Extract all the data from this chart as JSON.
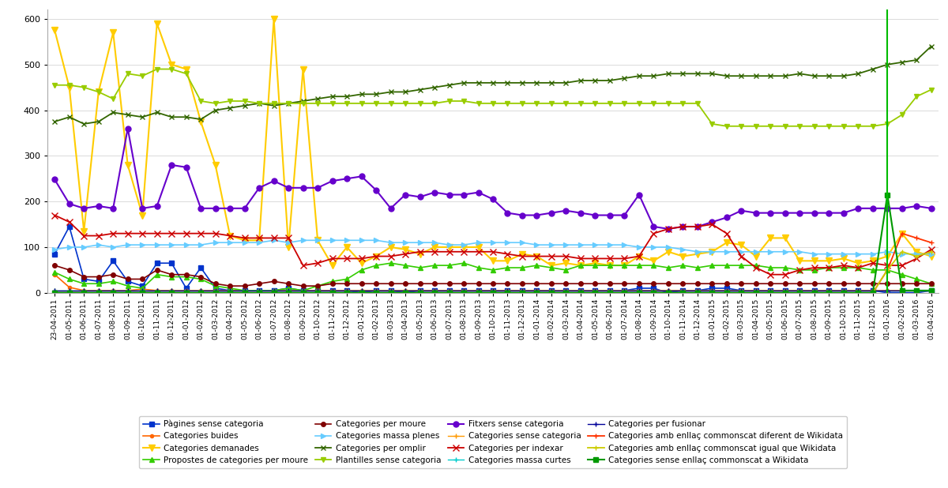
{
  "ylim": [
    0,
    620
  ],
  "yticks": [
    0,
    100,
    200,
    300,
    400,
    500,
    600
  ],
  "bg_color": "#FFFFFF",
  "grid_color": "#CCCCCC",
  "legend_fontsize": 7.5,
  "vertical_line_index": 57,
  "x_labels": [
    "23-04-2011",
    "01-05-2011",
    "01-06-2011",
    "01-07-2011",
    "01-08-2011",
    "01-09-2011",
    "01-10-2011",
    "01-11-2011",
    "01-12-2011",
    "01-01-2012",
    "01-02-2012",
    "01-03-2012",
    "01-04-2012",
    "01-05-2012",
    "01-06-2012",
    "01-07-2012",
    "01-08-2012",
    "01-09-2012",
    "01-10-2012",
    "01-11-2012",
    "01-12-2012",
    "01-01-2013",
    "01-02-2013",
    "01-03-2013",
    "01-04-2013",
    "01-05-2013",
    "01-06-2013",
    "01-07-2013",
    "01-08-2013",
    "01-09-2013",
    "01-10-2013",
    "01-11-2013",
    "01-12-2013",
    "01-01-2014",
    "01-02-2014",
    "01-03-2014",
    "01-04-2014",
    "01-05-2014",
    "01-06-2014",
    "01-07-2014",
    "01-08-2014",
    "01-09-2014",
    "01-10-2014",
    "01-11-2014",
    "01-12-2014",
    "01-01-2015",
    "01-02-2015",
    "01-03-2015",
    "01-04-2015",
    "01-05-2015",
    "01-06-2015",
    "01-07-2015",
    "01-08-2015",
    "01-09-2015",
    "01-10-2015",
    "01-11-2015",
    "01-12-2015",
    "01-01-2016",
    "01-02-2016",
    "01-03-2016",
    "01-04-2016"
  ],
  "series": {
    "Pàgines sense categoria": {
      "color": "#0033CC",
      "marker": "s",
      "markersize": 4,
      "linewidth": 1.2,
      "values": [
        85,
        145,
        30,
        25,
        70,
        25,
        15,
        65,
        65,
        10,
        55,
        10,
        5,
        5,
        5,
        5,
        10,
        5,
        5,
        5,
        5,
        0,
        5,
        5,
        0,
        5,
        5,
        5,
        5,
        5,
        5,
        5,
        5,
        5,
        5,
        5,
        5,
        5,
        5,
        5,
        10,
        10,
        0,
        5,
        5,
        10,
        10,
        5,
        5,
        5,
        5,
        5,
        5,
        5,
        5,
        5,
        5,
        0,
        0,
        0,
        5
      ]
    },
    "Categories buides": {
      "color": "#FF6600",
      "marker": "o",
      "markersize": 3,
      "linewidth": 1.2,
      "values": [
        40,
        12,
        5,
        5,
        5,
        5,
        8,
        5,
        5,
        5,
        5,
        5,
        5,
        5,
        5,
        5,
        5,
        5,
        5,
        5,
        5,
        5,
        5,
        5,
        5,
        5,
        5,
        5,
        5,
        5,
        5,
        5,
        5,
        5,
        5,
        5,
        5,
        5,
        5,
        5,
        5,
        5,
        5,
        5,
        5,
        5,
        5,
        5,
        5,
        5,
        5,
        5,
        5,
        5,
        5,
        5,
        5,
        5,
        5,
        5,
        5
      ]
    },
    "Categories demanades": {
      "color": "#FFCC00",
      "marker": "v",
      "markersize": 6,
      "linewidth": 1.5,
      "values": [
        575,
        450,
        135,
        440,
        570,
        280,
        170,
        590,
        500,
        490,
        375,
        280,
        125,
        115,
        115,
        600,
        100,
        490,
        115,
        60,
        100,
        65,
        80,
        100,
        95,
        85,
        100,
        100,
        100,
        100,
        70,
        70,
        85,
        80,
        60,
        65,
        60,
        65,
        60,
        60,
        80,
        70,
        90,
        80,
        85,
        90,
        110,
        105,
        80,
        120,
        120,
        70,
        70,
        70,
        75,
        65,
        70,
        80,
        130,
        90,
        80
      ]
    },
    "Propostes de categories per moure": {
      "color": "#33CC00",
      "marker": "^",
      "markersize": 5,
      "linewidth": 1.2,
      "values": [
        45,
        30,
        20,
        20,
        25,
        15,
        10,
        40,
        35,
        35,
        30,
        15,
        10,
        5,
        5,
        5,
        10,
        5,
        15,
        25,
        30,
        50,
        60,
        65,
        60,
        55,
        60,
        60,
        65,
        55,
        50,
        55,
        55,
        60,
        55,
        50,
        60,
        60,
        60,
        60,
        60,
        60,
        55,
        60,
        55,
        60,
        60,
        60,
        60,
        55,
        55,
        50,
        50,
        55,
        55,
        55,
        50,
        50,
        40,
        30,
        20
      ]
    },
    "Categories per moure": {
      "color": "#800000",
      "marker": "o",
      "markersize": 4,
      "linewidth": 1.2,
      "values": [
        60,
        50,
        35,
        35,
        40,
        30,
        30,
        50,
        40,
        40,
        35,
        20,
        15,
        15,
        20,
        25,
        20,
        15,
        15,
        20,
        20,
        20,
        20,
        20,
        20,
        20,
        20,
        20,
        20,
        20,
        20,
        20,
        20,
        20,
        20,
        20,
        20,
        20,
        20,
        20,
        20,
        20,
        20,
        20,
        20,
        20,
        20,
        20,
        20,
        20,
        20,
        20,
        20,
        20,
        20,
        20,
        20,
        20,
        20,
        20,
        20
      ]
    },
    "Categories massa plenes": {
      "color": "#66CCFF",
      "marker": ">",
      "markersize": 5,
      "linewidth": 1.2,
      "values": [
        95,
        100,
        100,
        105,
        100,
        105,
        105,
        105,
        105,
        105,
        105,
        110,
        110,
        110,
        110,
        115,
        110,
        115,
        115,
        115,
        115,
        115,
        115,
        110,
        110,
        110,
        110,
        105,
        105,
        110,
        110,
        110,
        110,
        105,
        105,
        105,
        105,
        105,
        105,
        105,
        100,
        100,
        100,
        95,
        90,
        90,
        90,
        90,
        90,
        90,
        90,
        90,
        85,
        85,
        85,
        85,
        85,
        90,
        85,
        85,
        85
      ]
    },
    "Categories per omplir": {
      "color": "#336600",
      "marker": "x",
      "markersize": 5,
      "linewidth": 1.3,
      "values": [
        375,
        385,
        370,
        375,
        395,
        390,
        385,
        395,
        385,
        385,
        380,
        400,
        405,
        410,
        415,
        410,
        415,
        420,
        425,
        430,
        430,
        435,
        435,
        440,
        440,
        445,
        450,
        455,
        460,
        460,
        460,
        460,
        460,
        460,
        460,
        460,
        465,
        465,
        465,
        470,
        475,
        475,
        480,
        480,
        480,
        480,
        475,
        475,
        475,
        475,
        475,
        480,
        475,
        475,
        475,
        480,
        490,
        500,
        505,
        510,
        540
      ]
    },
    "Plantilles sense categoria": {
      "color": "#99CC00",
      "marker": "v",
      "markersize": 5,
      "linewidth": 1.3,
      "values": [
        455,
        455,
        450,
        440,
        425,
        480,
        475,
        490,
        490,
        480,
        420,
        415,
        420,
        420,
        415,
        415,
        415,
        415,
        415,
        415,
        415,
        415,
        415,
        415,
        415,
        415,
        415,
        420,
        420,
        415,
        415,
        415,
        415,
        415,
        415,
        415,
        415,
        415,
        415,
        415,
        415,
        415,
        415,
        415,
        415,
        370,
        365,
        365,
        365,
        365,
        365,
        365,
        365,
        365,
        365,
        365,
        365,
        370,
        390,
        430,
        445
      ]
    },
    "Fitxers sense categoria": {
      "color": "#6600CC",
      "marker": "o",
      "markersize": 5,
      "linewidth": 1.5,
      "values": [
        248,
        195,
        185,
        190,
        185,
        360,
        185,
        190,
        280,
        275,
        185,
        185,
        185,
        185,
        230,
        245,
        230,
        230,
        230,
        245,
        250,
        255,
        225,
        185,
        215,
        210,
        220,
        215,
        215,
        220,
        205,
        175,
        170,
        170,
        175,
        180,
        175,
        170,
        170,
        170,
        215,
        145,
        140,
        145,
        145,
        155,
        165,
        180,
        175,
        175,
        175,
        175,
        175,
        175,
        175,
        185,
        185,
        185,
        185,
        190,
        185
      ]
    },
    "Categories sense categoria": {
      "color": "#FF9900",
      "marker": "+",
      "markersize": 5,
      "linewidth": 1.0,
      "values": [
        5,
        5,
        5,
        5,
        5,
        5,
        5,
        5,
        5,
        5,
        5,
        5,
        5,
        5,
        5,
        5,
        5,
        5,
        5,
        5,
        5,
        5,
        5,
        5,
        5,
        5,
        5,
        5,
        5,
        5,
        5,
        5,
        5,
        5,
        5,
        5,
        5,
        5,
        5,
        5,
        5,
        5,
        5,
        5,
        5,
        5,
        5,
        5,
        5,
        5,
        5,
        5,
        5,
        5,
        5,
        5,
        5,
        5,
        5,
        5,
        5
      ]
    },
    "Categories per indexar": {
      "color": "#CC0000",
      "marker": "x",
      "markersize": 6,
      "linewidth": 1.3,
      "values": [
        170,
        155,
        125,
        125,
        130,
        130,
        130,
        130,
        130,
        130,
        130,
        130,
        125,
        120,
        120,
        120,
        120,
        60,
        65,
        75,
        75,
        75,
        80,
        80,
        85,
        90,
        90,
        90,
        90,
        90,
        90,
        85,
        80,
        80,
        80,
        80,
        75,
        75,
        75,
        75,
        80,
        130,
        140,
        145,
        145,
        150,
        130,
        80,
        55,
        40,
        40,
        50,
        55,
        55,
        60,
        55,
        65,
        60,
        60,
        75,
        95
      ]
    },
    "Categories massa curtes": {
      "color": "#00CCCC",
      "marker": "+",
      "markersize": 5,
      "linewidth": 1.0,
      "values": [
        5,
        5,
        5,
        5,
        5,
        5,
        5,
        5,
        5,
        5,
        5,
        5,
        5,
        5,
        5,
        5,
        5,
        5,
        5,
        5,
        5,
        5,
        5,
        5,
        5,
        5,
        5,
        5,
        5,
        5,
        5,
        5,
        5,
        5,
        5,
        5,
        5,
        5,
        5,
        5,
        5,
        5,
        5,
        5,
        5,
        5,
        5,
        5,
        5,
        5,
        5,
        5,
        5,
        5,
        5,
        5,
        5,
        5,
        5,
        5,
        5
      ]
    },
    "Categories per fusionar": {
      "color": "#000099",
      "marker": "+",
      "markersize": 5,
      "linewidth": 1.0,
      "values": [
        5,
        5,
        5,
        5,
        5,
        5,
        5,
        5,
        5,
        5,
        5,
        5,
        5,
        5,
        5,
        5,
        5,
        5,
        5,
        5,
        5,
        5,
        5,
        5,
        5,
        5,
        5,
        5,
        5,
        5,
        5,
        5,
        5,
        5,
        5,
        5,
        5,
        5,
        5,
        5,
        5,
        5,
        5,
        5,
        5,
        5,
        5,
        5,
        5,
        5,
        5,
        5,
        5,
        5,
        5,
        5,
        5,
        5,
        5,
        5,
        5
      ]
    },
    "Categories amb enllaç commonscat diferent de Wikidata": {
      "color": "#FF3300",
      "marker": "+",
      "markersize": 5,
      "linewidth": 1.3,
      "values": [
        0,
        0,
        0,
        0,
        0,
        0,
        0,
        0,
        0,
        0,
        0,
        0,
        0,
        0,
        0,
        0,
        0,
        0,
        0,
        0,
        0,
        0,
        0,
        0,
        0,
        0,
        0,
        0,
        0,
        0,
        0,
        0,
        0,
        0,
        0,
        0,
        0,
        0,
        0,
        0,
        0,
        0,
        0,
        0,
        0,
        0,
        0,
        0,
        0,
        0,
        0,
        0,
        0,
        0,
        0,
        0,
        0,
        50,
        130,
        120,
        110
      ]
    },
    "Categories amb enllaç commonscat igual que Wikidata": {
      "color": "#CCCC00",
      "marker": "+",
      "markersize": 5,
      "linewidth": 1.3,
      "values": [
        0,
        0,
        0,
        0,
        0,
        0,
        0,
        0,
        0,
        0,
        0,
        0,
        0,
        0,
        0,
        0,
        0,
        0,
        0,
        0,
        0,
        0,
        0,
        0,
        0,
        0,
        0,
        0,
        0,
        0,
        0,
        0,
        0,
        0,
        0,
        0,
        0,
        0,
        0,
        0,
        0,
        0,
        0,
        0,
        0,
        0,
        0,
        0,
        0,
        0,
        0,
        0,
        0,
        0,
        0,
        0,
        0,
        50,
        90,
        80,
        90
      ]
    },
    "Categories sense enllaç commonscat a Wikidata": {
      "color": "#009900",
      "marker": "s",
      "markersize": 5,
      "linewidth": 1.5,
      "values": [
        0,
        0,
        0,
        0,
        0,
        0,
        0,
        0,
        0,
        0,
        0,
        0,
        0,
        0,
        0,
        0,
        0,
        0,
        0,
        0,
        0,
        0,
        0,
        0,
        0,
        0,
        0,
        0,
        0,
        0,
        0,
        0,
        0,
        0,
        0,
        0,
        0,
        0,
        0,
        0,
        0,
        0,
        0,
        0,
        0,
        0,
        0,
        0,
        0,
        0,
        0,
        0,
        0,
        0,
        0,
        0,
        0,
        215,
        5,
        5,
        5
      ]
    }
  }
}
